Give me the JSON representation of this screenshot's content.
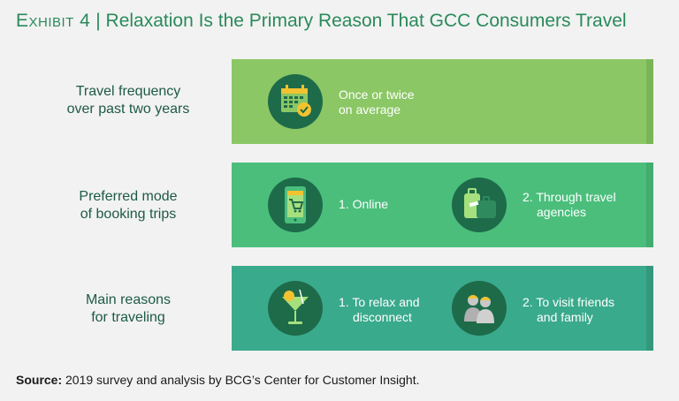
{
  "title": {
    "exhibit": "Exhibit 4",
    "separator": "|",
    "text": "Relaxation Is the Primary Reason That GCC Consumers Travel"
  },
  "colors": {
    "title": "#2a8a5a",
    "band1": "#8bc765",
    "band2": "#4bbe7c",
    "band3": "#3aaa8c",
    "circle": "#1e6b4a"
  },
  "rows": [
    {
      "label_line1": "Travel frequency",
      "label_line2": "over past two years",
      "items": [
        {
          "icon": "calendar-check-icon",
          "line1": "Once or twice",
          "line2": "on average"
        }
      ]
    },
    {
      "label_line1": "Preferred mode",
      "label_line2": "of booking trips",
      "items": [
        {
          "icon": "phone-cart-icon",
          "line1": "1. Online",
          "line2": ""
        },
        {
          "icon": "luggage-icon",
          "line1": "2. Through travel",
          "line2": "agencies"
        }
      ]
    },
    {
      "label_line1": "Main reasons",
      "label_line2": "for traveling",
      "items": [
        {
          "icon": "cocktail-icon",
          "line1": "1. To relax and",
          "line2": "disconnect"
        },
        {
          "icon": "people-icon",
          "line1": "2. To visit friends",
          "line2": "and family"
        }
      ]
    }
  ],
  "source": {
    "label": "Source:",
    "text": "2019 survey and analysis by BCG’s Center for Customer Insight."
  }
}
